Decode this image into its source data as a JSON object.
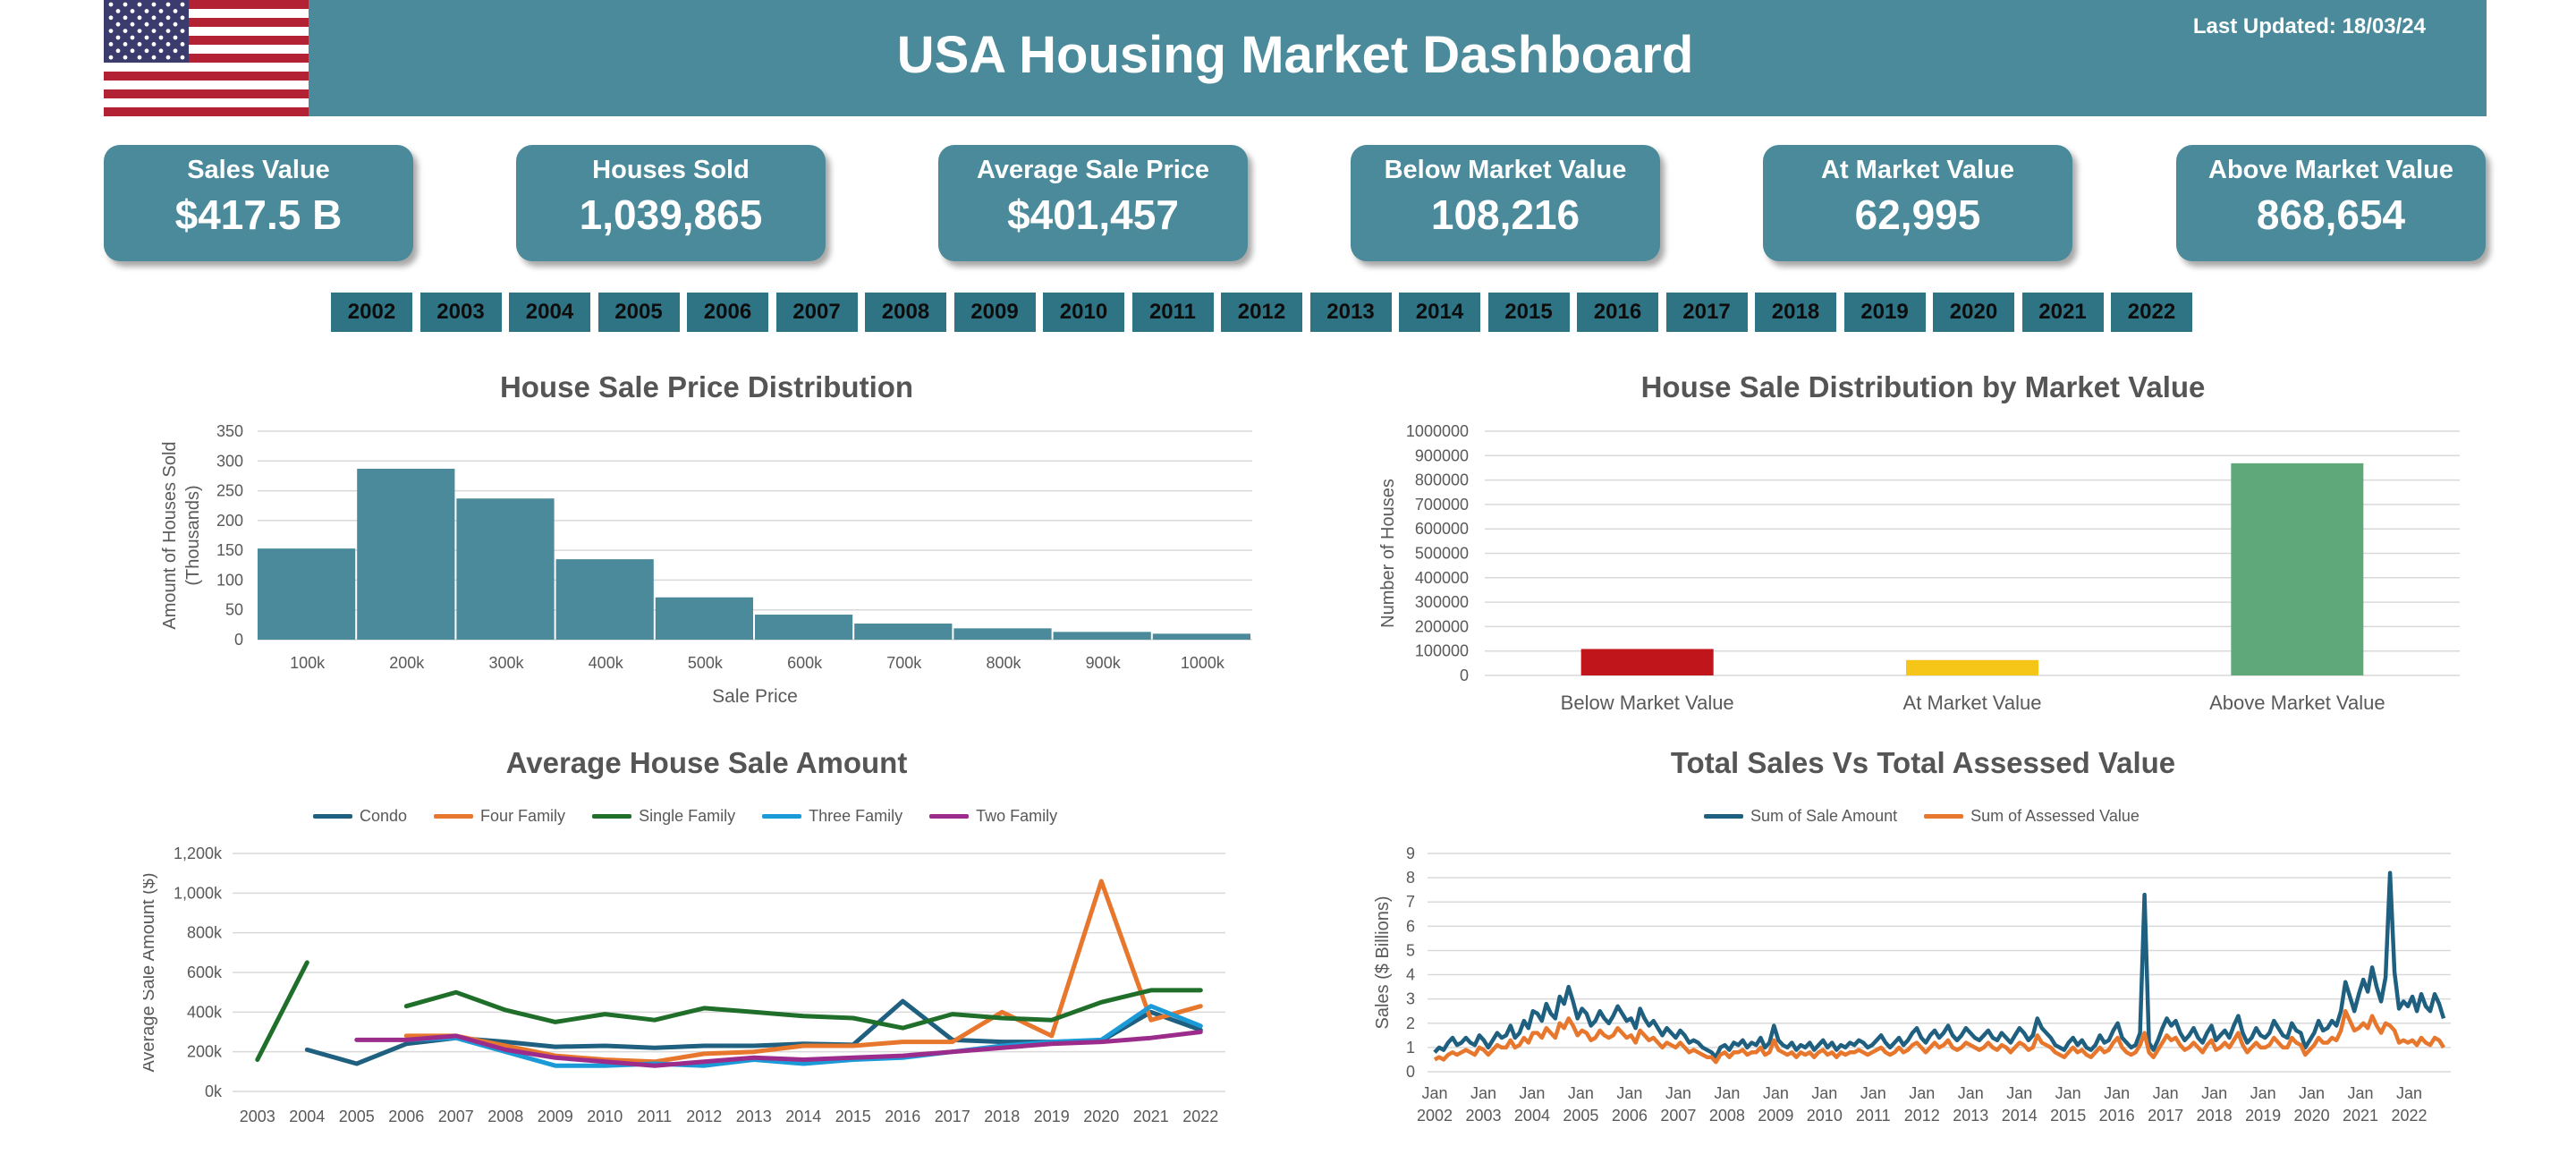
{
  "header": {
    "title": "USA Housing Market Dashboard",
    "last_updated": "Last Updated: 18/03/24",
    "flag_icon": "usa-flag-icon",
    "banner_color": "#4a8a9a"
  },
  "kpis": [
    {
      "label": "Sales Value",
      "value": "$417.5 B"
    },
    {
      "label": "Houses Sold",
      "value": "1,039,865"
    },
    {
      "label": "Average Sale Price",
      "value": "$401,457"
    },
    {
      "label": "Below Market Value",
      "value": "108,216"
    },
    {
      "label": "At Market Value",
      "value": "62,995"
    },
    {
      "label": "Above Market Value",
      "value": "868,654"
    }
  ],
  "year_filters": [
    "2002",
    "2003",
    "2004",
    "2005",
    "2006",
    "2007",
    "2008",
    "2009",
    "2010",
    "2011",
    "2012",
    "2013",
    "2014",
    "2015",
    "2016",
    "2017",
    "2018",
    "2019",
    "2020",
    "2021",
    "2022"
  ],
  "chart_data": [
    {
      "type": "bar",
      "title": "House Sale Price Distribution",
      "xlabel": "Sale Price",
      "ylabel": "Amount of Houses Sold (Thousands)",
      "ylabel_lines": [
        "Amount of Houses Sold",
        "(Thousands)"
      ],
      "categories": [
        "100k",
        "200k",
        "300k",
        "400k",
        "500k",
        "600k",
        "700k",
        "800k",
        "900k",
        "1000k"
      ],
      "values": [
        153,
        287,
        237,
        135,
        71,
        42,
        27,
        19,
        13,
        10
      ],
      "ylim": [
        0,
        350
      ],
      "yticks": [
        "0",
        "50",
        "100",
        "150",
        "200",
        "250",
        "300",
        "350"
      ],
      "color": "#4a8a9a",
      "grid": true
    },
    {
      "type": "bar",
      "title": "House Sale Distribution by Market Value",
      "ylabel": "Number of Houses",
      "categories": [
        "Below Market Value",
        "At Market Value",
        "Above Market Value"
      ],
      "values": [
        108216,
        62995,
        868654
      ],
      "colors": [
        "#c0151a",
        "#f5c518",
        "#5fa87a"
      ],
      "ylim": [
        0,
        1000000
      ],
      "yticks": [
        "0",
        "100000",
        "200000",
        "300000",
        "400000",
        "500000",
        "600000",
        "700000",
        "800000",
        "900000",
        "1000000"
      ],
      "grid": true
    },
    {
      "type": "line",
      "title": "Average House Sale Amount",
      "ylabel": "Average Sale Amount ($)",
      "x": [
        "2003",
        "2004",
        "2005",
        "2006",
        "2007",
        "2008",
        "2009",
        "2010",
        "2011",
        "2012",
        "2013",
        "2014",
        "2015",
        "2016",
        "2017",
        "2018",
        "2019",
        "2020",
        "2021",
        "2022"
      ],
      "yticks": [
        "0k",
        "200k",
        "400k",
        "600k",
        "800k",
        "1,000k",
        "1,200k"
      ],
      "ylim": [
        0,
        1200000
      ],
      "legend": "top",
      "series": [
        {
          "name": "Condo",
          "color": "#1f5f7f",
          "values": [
            null,
            210000,
            140000,
            240000,
            270000,
            250000,
            225000,
            230000,
            220000,
            230000,
            230000,
            240000,
            235000,
            455000,
            260000,
            250000,
            250000,
            255000,
            400000,
            310000
          ]
        },
        {
          "name": "Four Family",
          "color": "#e8772e",
          "values": [
            null,
            null,
            null,
            280000,
            280000,
            230000,
            180000,
            160000,
            150000,
            190000,
            200000,
            230000,
            230000,
            250000,
            250000,
            400000,
            280000,
            1060000,
            360000,
            430000
          ]
        },
        {
          "name": "Single Family",
          "color": "#1f6e2a",
          "values": [
            160000,
            650000,
            null,
            430000,
            500000,
            410000,
            350000,
            390000,
            360000,
            420000,
            400000,
            380000,
            370000,
            320000,
            390000,
            370000,
            360000,
            450000,
            510000,
            510000
          ]
        },
        {
          "name": "Three Family",
          "color": "#1a9ad7",
          "values": [
            null,
            null,
            null,
            260000,
            270000,
            200000,
            130000,
            130000,
            140000,
            130000,
            160000,
            140000,
            160000,
            170000,
            200000,
            230000,
            250000,
            260000,
            430000,
            330000
          ]
        },
        {
          "name": "Two Family",
          "color": "#9b2c8c",
          "values": [
            null,
            null,
            260000,
            260000,
            280000,
            210000,
            170000,
            150000,
            130000,
            150000,
            170000,
            160000,
            170000,
            180000,
            200000,
            220000,
            240000,
            250000,
            270000,
            300000
          ]
        }
      ]
    },
    {
      "type": "line",
      "title": "Total Sales Vs Total Assessed Value",
      "ylabel": "Sales ($ Billions)",
      "ylim": [
        0,
        9
      ],
      "yticks": [
        "0",
        "1",
        "2",
        "3",
        "4",
        "5",
        "6",
        "7",
        "8",
        "9"
      ],
      "x_labels": [
        [
          "Jan",
          "2002"
        ],
        [
          "Jan",
          "2003"
        ],
        [
          "Jan",
          "2004"
        ],
        [
          "Jan",
          "2005"
        ],
        [
          "Jan",
          "2006"
        ],
        [
          "Jan",
          "2007"
        ],
        [
          "Jan",
          "2008"
        ],
        [
          "Jan",
          "2009"
        ],
        [
          "Jan",
          "2010"
        ],
        [
          "Jan",
          "2011"
        ],
        [
          "Jan",
          "2012"
        ],
        [
          "Jan",
          "2013"
        ],
        [
          "Jan",
          "2014"
        ],
        [
          "Jan",
          "2015"
        ],
        [
          "Jan",
          "2016"
        ],
        [
          "Jan",
          "2017"
        ],
        [
          "Jan",
          "2018"
        ],
        [
          "Jan",
          "2019"
        ],
        [
          "Jan",
          "2020"
        ],
        [
          "Jan",
          "2021"
        ],
        [
          "Jan",
          "2022"
        ]
      ],
      "legend": "top",
      "series": [
        {
          "name": "Sum of Sale Amount",
          "color": "#1f5f7f",
          "values": [
            0.8,
            1.0,
            0.9,
            1.2,
            1.4,
            1.1,
            1.2,
            1.4,
            1.2,
            1.1,
            1.5,
            1.3,
            1.0,
            1.3,
            1.6,
            1.4,
            1.5,
            1.9,
            1.4,
            1.6,
            2.1,
            1.8,
            2.5,
            2.4,
            2.1,
            2.8,
            2.4,
            2.2,
            3.1,
            2.8,
            3.5,
            2.9,
            2.2,
            2.6,
            2.4,
            1.9,
            2.1,
            2.5,
            2.2,
            2.0,
            2.3,
            2.7,
            2.4,
            2.1,
            2.2,
            1.8,
            2.6,
            2.2,
            1.9,
            2.1,
            1.8,
            1.5,
            1.8,
            1.6,
            1.4,
            1.7,
            1.5,
            1.2,
            1.3,
            1.2,
            1.0,
            0.9,
            0.8,
            0.6,
            1.0,
            1.1,
            0.9,
            1.2,
            1.1,
            1.3,
            1.0,
            1.2,
            1.1,
            1.4,
            1.0,
            1.2,
            1.9,
            1.3,
            1.1,
            1.0,
            1.2,
            0.9,
            1.1,
            1.0,
            1.2,
            0.9,
            1.1,
            1.3,
            1.0,
            1.2,
            0.9,
            1.1,
            1.0,
            1.2,
            1.1,
            1.3,
            1.2,
            1.0,
            1.1,
            1.3,
            1.5,
            1.2,
            1.0,
            1.2,
            1.4,
            1.1,
            1.3,
            1.6,
            1.8,
            1.4,
            1.2,
            1.5,
            1.7,
            1.4,
            1.6,
            1.9,
            1.5,
            1.3,
            1.5,
            1.8,
            1.6,
            1.4,
            1.3,
            1.5,
            1.7,
            1.4,
            1.3,
            1.6,
            1.4,
            1.2,
            1.5,
            1.8,
            1.6,
            1.3,
            1.5,
            2.2,
            1.8,
            1.6,
            1.4,
            1.1,
            1.0,
            0.9,
            1.2,
            1.4,
            1.1,
            1.3,
            1.0,
            0.9,
            1.1,
            1.5,
            1.2,
            1.3,
            1.7,
            2.0,
            1.4,
            1.2,
            1.0,
            1.1,
            1.6,
            7.3,
            1.2,
            0.9,
            1.3,
            1.8,
            2.2,
            1.9,
            2.1,
            1.6,
            1.3,
            1.5,
            1.8,
            1.4,
            1.2,
            1.6,
            1.9,
            1.3,
            1.5,
            1.7,
            1.4,
            1.9,
            2.3,
            1.6,
            1.2,
            1.4,
            1.8,
            1.5,
            1.4,
            1.6,
            2.1,
            1.8,
            1.5,
            1.4,
            2.0,
            1.7,
            1.6,
            1.0,
            1.3,
            1.6,
            2.1,
            1.7,
            1.8,
            2.1,
            1.9,
            2.5,
            3.7,
            3.1,
            2.5,
            3.2,
            3.8,
            3.3,
            4.3,
            3.5,
            2.9,
            3.9,
            8.2,
            4.1,
            2.6,
            2.9,
            2.7,
            3.1,
            2.5,
            3.2,
            2.7,
            2.5,
            3.2,
            2.8,
            2.2
          ]
        },
        {
          "name": "Sum of Assessed Value",
          "color": "#e8772e",
          "values": [
            0.5,
            0.6,
            0.5,
            0.7,
            0.8,
            0.7,
            0.8,
            0.9,
            0.8,
            0.7,
            1.0,
            0.9,
            0.7,
            0.9,
            1.1,
            1.0,
            1.0,
            1.3,
            1.0,
            1.1,
            1.4,
            1.2,
            1.6,
            1.6,
            1.4,
            1.8,
            1.6,
            1.4,
            2.0,
            1.8,
            2.2,
            1.9,
            1.5,
            1.7,
            1.6,
            1.3,
            1.4,
            1.7,
            1.5,
            1.4,
            1.5,
            1.8,
            1.6,
            1.4,
            1.5,
            1.2,
            1.7,
            1.5,
            1.3,
            1.4,
            1.2,
            1.0,
            1.2,
            1.1,
            1.0,
            1.2,
            1.0,
            0.8,
            0.9,
            0.8,
            0.7,
            0.6,
            0.6,
            0.4,
            0.7,
            0.8,
            0.6,
            0.8,
            0.8,
            0.9,
            0.7,
            0.8,
            0.8,
            1.0,
            0.7,
            0.8,
            1.3,
            0.9,
            0.8,
            0.7,
            0.8,
            0.6,
            0.8,
            0.7,
            0.8,
            0.6,
            0.8,
            0.9,
            0.7,
            0.8,
            0.6,
            0.8,
            0.7,
            0.8,
            0.8,
            0.9,
            0.8,
            0.7,
            0.8,
            0.9,
            1.0,
            0.8,
            0.7,
            0.8,
            1.0,
            0.8,
            0.9,
            1.1,
            1.2,
            1.0,
            0.8,
            1.0,
            1.2,
            1.0,
            1.1,
            1.3,
            1.0,
            0.9,
            1.0,
            1.2,
            1.1,
            1.0,
            0.9,
            1.0,
            1.2,
            1.0,
            0.9,
            1.1,
            1.0,
            0.8,
            1.0,
            1.2,
            1.1,
            0.9,
            1.0,
            1.5,
            1.2,
            1.1,
            1.0,
            0.8,
            0.7,
            0.6,
            0.8,
            1.0,
            0.8,
            0.9,
            0.7,
            0.6,
            0.8,
            1.0,
            0.8,
            0.9,
            1.2,
            1.4,
            1.0,
            0.8,
            0.7,
            0.8,
            1.1,
            1.6,
            0.8,
            0.6,
            0.9,
            1.2,
            1.5,
            1.3,
            1.4,
            1.1,
            0.9,
            1.0,
            1.2,
            1.0,
            0.8,
            1.1,
            1.3,
            0.9,
            1.0,
            1.2,
            1.0,
            1.3,
            1.6,
            1.1,
            0.8,
            1.0,
            1.2,
            1.0,
            1.0,
            1.1,
            1.4,
            1.2,
            1.0,
            1.0,
            1.4,
            1.2,
            1.1,
            0.7,
            0.9,
            1.1,
            1.4,
            1.2,
            1.2,
            1.4,
            1.3,
            1.7,
            2.5,
            2.1,
            1.7,
            1.8,
            2.0,
            1.8,
            2.3,
            1.9,
            1.6,
            2.0,
            1.9,
            1.7,
            1.2,
            1.3,
            1.2,
            1.3,
            1.1,
            1.4,
            1.2,
            1.1,
            1.4,
            1.3,
            1.0
          ]
        }
      ]
    }
  ]
}
